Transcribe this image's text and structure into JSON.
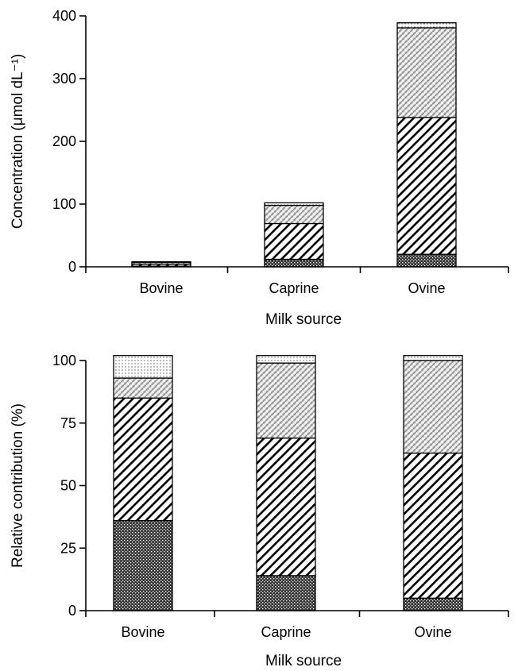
{
  "chart_data": [
    {
      "type": "bar",
      "stacked": true,
      "xlabel": "Milk source",
      "ylabel": "Concentration (μmol dL⁻¹)",
      "ylim": [
        0,
        400
      ],
      "yticks": [
        0,
        100,
        200,
        300,
        400
      ],
      "categories": [
        "Bovine",
        "Caprine",
        "Ovine"
      ],
      "grid": false,
      "legend": "none",
      "series": [
        {
          "pattern": "dense-dots",
          "values": [
            1,
            12,
            20
          ]
        },
        {
          "pattern": "diagonal-stripes",
          "values": [
            3,
            57,
            218
          ]
        },
        {
          "pattern": "cross-hatch",
          "values": [
            3,
            29,
            143
          ]
        },
        {
          "pattern": "light-dots",
          "values": [
            1,
            4,
            8
          ]
        }
      ]
    },
    {
      "type": "bar",
      "stacked": true,
      "xlabel": "Milk source",
      "ylabel": "Relative contribution (%)",
      "ylim": [
        0,
        100
      ],
      "yticks": [
        0,
        25,
        50,
        75,
        100
      ],
      "categories": [
        "Bovine",
        "Caprine",
        "Ovine"
      ],
      "grid": false,
      "legend": "none",
      "series": [
        {
          "pattern": "dense-dots",
          "values": [
            36,
            14,
            5
          ]
        },
        {
          "pattern": "diagonal-stripes",
          "values": [
            49,
            55,
            58
          ]
        },
        {
          "pattern": "cross-hatch",
          "values": [
            8,
            30,
            37
          ]
        },
        {
          "pattern": "light-dots",
          "values": [
            9,
            3,
            2
          ]
        }
      ]
    }
  ]
}
